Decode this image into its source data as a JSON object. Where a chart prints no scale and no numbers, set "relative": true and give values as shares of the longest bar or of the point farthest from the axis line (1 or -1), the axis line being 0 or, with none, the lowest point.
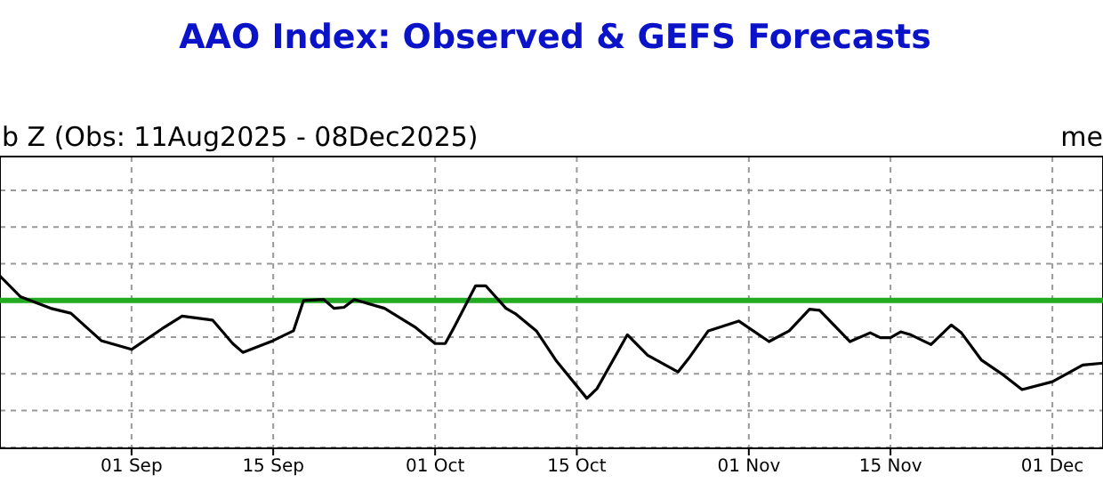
{
  "chart_data": {
    "type": "line",
    "title": "AAO Index: Observed & GEFS Forecasts",
    "subtitle": "b Z (Obs: 11Aug2025 - 08Dec2025)",
    "annotations": [
      "me"
    ],
    "relative": true,
    "grid": true,
    "marker": "none",
    "line_style": "solid",
    "x": [
      "2025-08-19",
      "2025-08-21",
      "2025-08-24",
      "2025-08-26",
      "2025-08-29",
      "2025-09-01",
      "2025-09-04",
      "2025-09-06",
      "2025-09-09",
      "2025-09-11",
      "2025-09-12",
      "2025-09-15",
      "2025-09-17",
      "2025-09-18",
      "2025-09-20",
      "2025-09-21",
      "2025-09-22",
      "2025-09-23",
      "2025-09-26",
      "2025-09-29",
      "2025-10-01",
      "2025-10-02",
      "2025-10-03",
      "2025-10-05",
      "2025-10-06",
      "2025-10-08",
      "2025-10-09",
      "2025-10-11",
      "2025-10-13",
      "2025-10-16",
      "2025-10-17",
      "2025-10-20",
      "2025-10-22",
      "2025-10-25",
      "2025-10-26",
      "2025-10-28",
      "2025-10-31",
      "2025-11-03",
      "2025-11-05",
      "2025-11-07",
      "2025-11-08",
      "2025-11-11",
      "2025-11-13",
      "2025-11-14",
      "2025-11-15",
      "2025-11-16",
      "2025-11-17",
      "2025-11-19",
      "2025-11-21",
      "2025-11-22",
      "2025-11-24",
      "2025-11-26",
      "2025-11-28",
      "2025-12-01",
      "2025-12-04",
      "2025-12-06"
    ],
    "series": [
      {
        "color": "#000000",
        "values": [
          0.25,
          0.04,
          -0.08,
          -0.13,
          -0.41,
          -0.5,
          -0.29,
          -0.16,
          -0.2,
          -0.44,
          -0.53,
          -0.41,
          -0.31,
          0,
          0.01,
          -0.08,
          -0.07,
          0.01,
          -0.08,
          -0.27,
          -0.44,
          -0.44,
          -0.25,
          0.15,
          0.15,
          -0.08,
          -0.14,
          -0.31,
          -0.62,
          -1,
          -0.9,
          -0.35,
          -0.56,
          -0.73,
          -0.6,
          -0.31,
          -0.21,
          -0.42,
          -0.31,
          -0.09,
          -0.1,
          -0.42,
          -0.33,
          -0.38,
          -0.38,
          -0.32,
          -0.35,
          -0.45,
          -0.25,
          -0.33,
          -0.61,
          -0.75,
          -0.91,
          -0.83,
          -0.66,
          -0.64
        ]
      }
    ],
    "ref_lines": [
      {
        "axis": "y",
        "value": 0,
        "color": "#22aa22"
      }
    ],
    "xlim": [
      "2025-08-19",
      "2025-12-06"
    ],
    "xticks": [
      {
        "value": "2025-09-01",
        "label": "01 Sep"
      },
      {
        "value": "2025-09-15",
        "label": "15 Sep"
      },
      {
        "value": "2025-10-01",
        "label": "01 Oct"
      },
      {
        "value": "2025-10-15",
        "label": "15 Oct"
      },
      {
        "value": "2025-11-01",
        "label": "01 Nov"
      },
      {
        "value": "2025-11-15",
        "label": "15 Nov"
      },
      {
        "value": "2025-12-01",
        "label": "01 Dec"
      }
    ]
  }
}
